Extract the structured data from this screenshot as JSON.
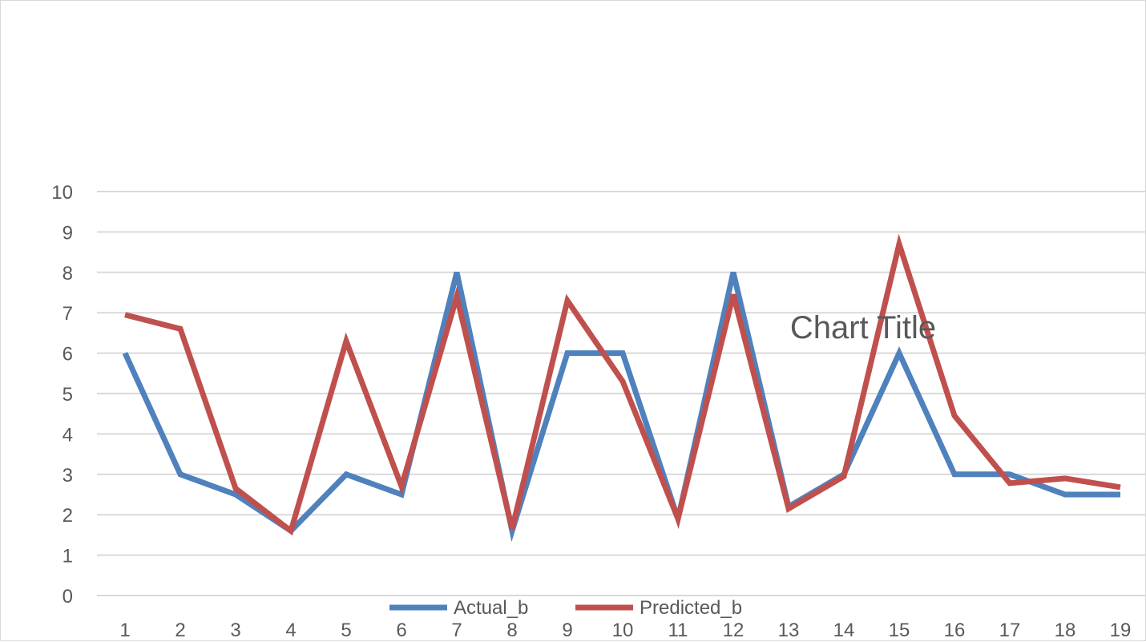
{
  "chart_data": {
    "type": "line",
    "title": "Chart Title",
    "xlabel": "",
    "ylabel": "",
    "ylim": [
      0,
      10
    ],
    "yticks": [
      "0",
      "1",
      "2",
      "3",
      "4",
      "5",
      "6",
      "7",
      "8",
      "9",
      "10"
    ],
    "categories": [
      "1",
      "2",
      "3",
      "4",
      "5",
      "6",
      "7",
      "8",
      "9",
      "10",
      "11",
      "12",
      "13",
      "14",
      "15",
      "16",
      "17",
      "18",
      "19"
    ],
    "grid": true,
    "legend_position": "bottom",
    "series": [
      {
        "name": "Actual_b",
        "color": "#4f81bd",
        "values": [
          6,
          3,
          2.5,
          1.6,
          3,
          2.5,
          8,
          1.6,
          6,
          6,
          1.9,
          8,
          2.2,
          3,
          6,
          3,
          3,
          2.5,
          2.5
        ]
      },
      {
        "name": "Predicted_b",
        "color": "#c0504d",
        "values": [
          6.95,
          6.6,
          2.65,
          1.6,
          6.3,
          2.7,
          7.4,
          1.65,
          7.3,
          5.3,
          1.9,
          7.45,
          2.15,
          2.95,
          8.7,
          4.45,
          2.78,
          2.9,
          2.68
        ]
      }
    ]
  }
}
